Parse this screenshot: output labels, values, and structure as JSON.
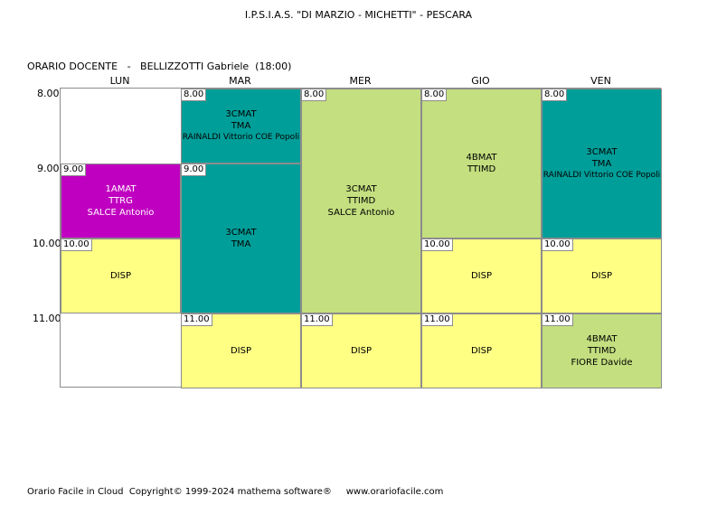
{
  "school_title": "I.P.S.I.A.S. \"DI MARZIO - MICHETTI\" - PESCARA",
  "teacher_header": "ORARIO DOCENTE   -   BELLIZZOTTI Gabriele  (18:00)",
  "days": [
    "LUN",
    "MAR",
    "MER",
    "GIO",
    "VEN"
  ],
  "times": [
    "8.00",
    "9.00",
    "10.00",
    "11.00"
  ],
  "colors": {
    "teal": "#009e99",
    "green": "#c3df7f",
    "yellow": "#ffff84",
    "magenta": "#c000c0"
  },
  "lessons": {
    "mon_9": {
      "time": "9.00",
      "lines": [
        "1AMAT",
        "TTRG",
        "SALCE Antonio"
      ]
    },
    "mon_10": {
      "time": "10.00",
      "lines": [
        "DISP"
      ]
    },
    "tue_8": {
      "time": "8.00",
      "lines": [
        "3CMAT",
        "TMA",
        "RAINALDI Vittorio COE Popoli"
      ]
    },
    "tue_9": {
      "time": "9.00",
      "lines": [
        "3CMAT",
        "TMA"
      ]
    },
    "tue_11": {
      "time": "11.00",
      "lines": [
        "DISP"
      ]
    },
    "wed_8": {
      "time": "8.00",
      "lines": [
        "3CMAT",
        "TTIMD",
        "SALCE Antonio"
      ]
    },
    "wed_11": {
      "time": "11.00",
      "lines": [
        "DISP"
      ]
    },
    "thu_8": {
      "time": "8.00",
      "lines": [
        "4BMAT",
        "TTIMD"
      ]
    },
    "thu_10": {
      "time": "10.00",
      "lines": [
        "DISP"
      ]
    },
    "thu_11": {
      "time": "11.00",
      "lines": [
        "DISP"
      ]
    },
    "fri_8": {
      "time": "8.00",
      "lines": [
        "3CMAT",
        "TMA",
        "RAINALDI Vittorio COE Popoli"
      ]
    },
    "fri_10": {
      "time": "10.00",
      "lines": [
        "DISP"
      ]
    },
    "fri_11": {
      "time": "11.00",
      "lines": [
        "4BMAT",
        "TTIMD",
        "FIORE Davide"
      ]
    }
  },
  "footer": "Orario Facile in Cloud  Copyright© 1999-2024 mathema software®     www.orariofacile.com"
}
